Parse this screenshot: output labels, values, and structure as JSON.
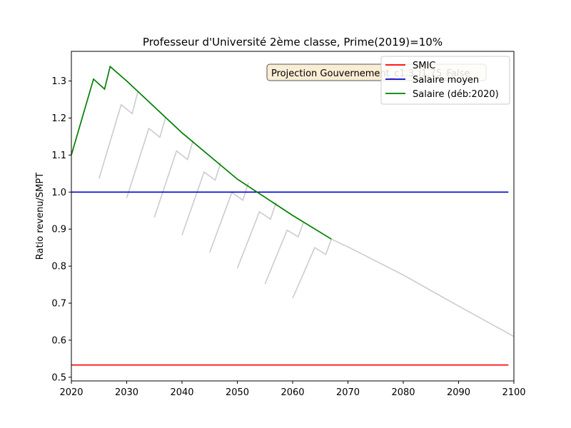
{
  "chart_data": {
    "type": "line",
    "title": "Professeur d'Université 2ème classe, Prime(2019)=10%",
    "xlabel": "",
    "ylabel": "Ratio revenu/SMPT",
    "xlim": [
      2020,
      2100
    ],
    "ylim": [
      0.49,
      1.38
    ],
    "x_ticks": [
      2020,
      2030,
      2040,
      2050,
      2060,
      2070,
      2080,
      2090,
      2100
    ],
    "y_ticks": [
      0.5,
      0.6,
      0.7,
      0.8,
      0.9,
      1.0,
      1.1,
      1.2,
      1.3
    ],
    "x_tick_labels": [
      "2020",
      "2030",
      "2040",
      "2050",
      "2060",
      "2070",
      "2080",
      "2090",
      "2100"
    ],
    "y_tick_labels": [
      "0.5",
      "0.6",
      "0.7",
      "0.8",
      "0.9",
      "1.0",
      "1.1",
      "1.2",
      "1.3"
    ],
    "grid": false,
    "legend_position": "top-right",
    "annotation": "Projection Gouvernement_c1.3_l1.75_False",
    "background_series": [
      {
        "x": [
          2025,
          2029,
          2031,
          2032
        ],
        "y": [
          1.037,
          1.236,
          1.212,
          1.27
        ]
      },
      {
        "x": [
          2030,
          2034,
          2036,
          2037
        ],
        "y": [
          0.984,
          1.172,
          1.148,
          1.2
        ]
      },
      {
        "x": [
          2035,
          2039,
          2041,
          2042
        ],
        "y": [
          0.932,
          1.111,
          1.088,
          1.14
        ]
      },
      {
        "x": [
          2040,
          2044,
          2046,
          2047
        ],
        "y": [
          0.884,
          1.054,
          1.032,
          1.08
        ]
      },
      {
        "x": [
          2045,
          2049,
          2051,
          2052
        ],
        "y": [
          0.837,
          0.999,
          0.978,
          1.025
        ]
      },
      {
        "x": [
          2050,
          2054,
          2056,
          2057
        ],
        "y": [
          0.794,
          0.947,
          0.927,
          0.972
        ]
      },
      {
        "x": [
          2055,
          2059,
          2061,
          2062
        ],
        "y": [
          0.752,
          0.897,
          0.879,
          0.92
        ]
      },
      {
        "x": [
          2060,
          2064,
          2066,
          2067,
          2070,
          2080,
          2090,
          2100
        ],
        "y": [
          0.713,
          0.85,
          0.832,
          0.873,
          0.852,
          0.776,
          0.692,
          0.61
        ]
      }
    ],
    "series": [
      {
        "name": "SMIC",
        "color": "#ff0000",
        "x": [
          2020,
          2099
        ],
        "y": [
          0.533,
          0.533
        ]
      },
      {
        "name": "Salaire moyen",
        "color": "#0000cc",
        "x": [
          2020,
          2099
        ],
        "y": [
          1.0,
          1.0
        ]
      },
      {
        "name": "Salaire (déb:2020)",
        "color": "#008000",
        "x": [
          2020,
          2024,
          2026,
          2027,
          2030,
          2040,
          2050,
          2060,
          2067
        ],
        "y": [
          1.1,
          1.305,
          1.278,
          1.339,
          1.3,
          1.16,
          1.035,
          0.937,
          0.873
        ]
      }
    ]
  }
}
